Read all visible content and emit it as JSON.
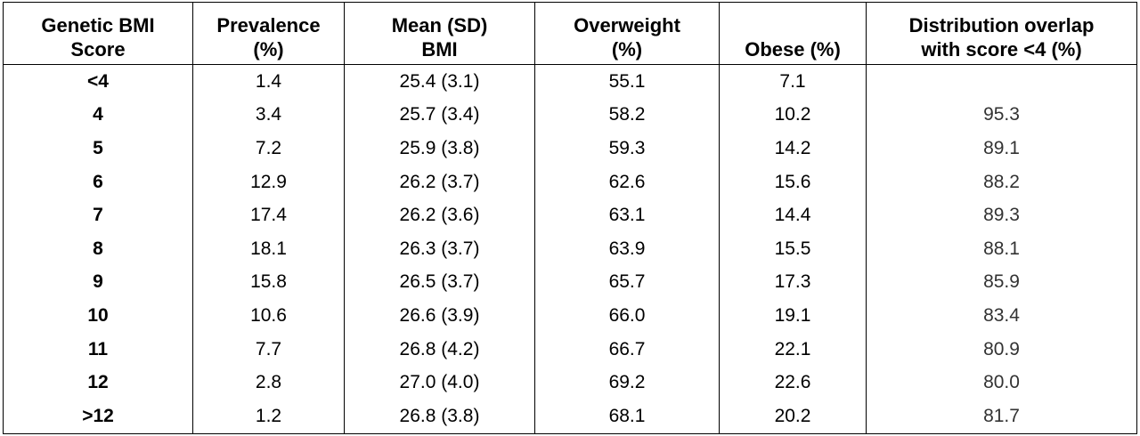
{
  "table": {
    "headers": [
      [
        "Genetic BMI",
        "Score"
      ],
      [
        "Prevalence",
        "(%)"
      ],
      [
        "Mean (SD)",
        "BMI"
      ],
      [
        "Overweight",
        "(%)"
      ],
      [
        "Obese (%)"
      ],
      [
        "Distribution overlap",
        "with score <4 (%)"
      ]
    ],
    "rows": [
      [
        "<4",
        "1.4",
        "25.4 (3.1)",
        "55.1",
        "7.1",
        ""
      ],
      [
        "4",
        "3.4",
        "25.7 (3.4)",
        "58.2",
        "10.2",
        "95.3"
      ],
      [
        "5",
        "7.2",
        "25.9 (3.8)",
        "59.3",
        "14.2",
        "89.1"
      ],
      [
        "6",
        "12.9",
        "26.2 (3.7)",
        "62.6",
        "15.6",
        "88.2"
      ],
      [
        "7",
        "17.4",
        "26.2 (3.6)",
        "63.1",
        "14.4",
        "89.3"
      ],
      [
        "8",
        "18.1",
        "26.3 (3.7)",
        "63.9",
        "15.5",
        "88.1"
      ],
      [
        "9",
        "15.8",
        "26.5 (3.7)",
        "65.7",
        "17.3",
        "85.9"
      ],
      [
        "10",
        "10.6",
        "26.6 (3.9)",
        "66.0",
        "19.1",
        "83.4"
      ],
      [
        "11",
        "7.7",
        "26.8 (4.2)",
        "66.7",
        "22.1",
        "80.9"
      ],
      [
        "12",
        "2.8",
        "27.0 (4.0)",
        "69.2",
        "22.6",
        "80.0"
      ],
      [
        ">12",
        "1.2",
        "26.8 (3.8)",
        "68.1",
        "20.2",
        "81.7"
      ]
    ]
  }
}
